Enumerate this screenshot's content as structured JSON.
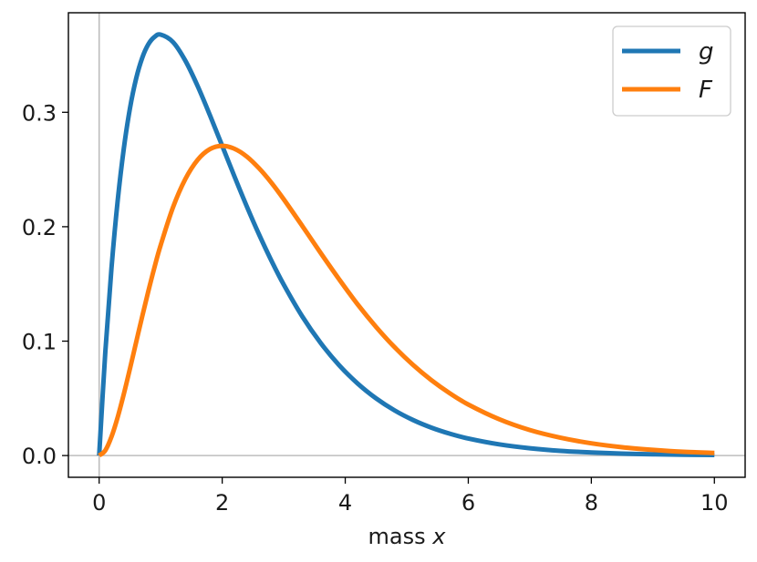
{
  "chart_data": {
    "type": "line",
    "xlabel": {
      "prefix": "mass ",
      "var": "x"
    },
    "xlim": [
      -0.5,
      10.5
    ],
    "ylim": [
      -0.019,
      0.387
    ],
    "x_ticks": [
      0,
      2,
      4,
      6,
      8,
      10
    ],
    "x_tick_labels": [
      "0",
      "2",
      "4",
      "6",
      "8",
      "10"
    ],
    "y_ticks": [
      0.0,
      0.1,
      0.2,
      0.3
    ],
    "y_tick_labels": [
      "0.0",
      "0.1",
      "0.2",
      "0.3"
    ],
    "grid": false,
    "reference_lines": {
      "x": 0,
      "y": 0,
      "color": "#bdbdbd"
    },
    "legend_position": "top-right",
    "x": [
      0,
      0.1,
      0.2,
      0.3,
      0.4,
      0.5,
      0.6,
      0.7,
      0.8,
      0.9,
      1.0,
      1.2,
      1.4,
      1.6,
      1.8,
      2.0,
      2.2,
      2.4,
      2.6,
      2.8,
      3.0,
      3.3,
      3.6,
      3.9,
      4.2,
      4.5,
      4.8,
      5.1,
      5.4,
      5.7,
      6.0,
      6.5,
      7.0,
      7.5,
      8.0,
      8.5,
      9.0,
      9.5,
      10.0
    ],
    "series": [
      {
        "name": "g",
        "color": "#1f77b4",
        "values": [
          0,
          0.0905,
          0.1637,
          0.2222,
          0.2681,
          0.3033,
          0.3293,
          0.3476,
          0.3595,
          0.3659,
          0.3679,
          0.3614,
          0.3452,
          0.323,
          0.2975,
          0.2707,
          0.2438,
          0.2177,
          0.1931,
          0.1703,
          0.1494,
          0.1217,
          0.0984,
          0.079,
          0.063,
          0.05,
          0.0395,
          0.0311,
          0.0244,
          0.0191,
          0.0149,
          0.0098,
          0.0064,
          0.0041,
          0.0027,
          0.0017,
          0.0011,
          0.0007,
          0.0005
        ]
      },
      {
        "name": "F",
        "color": "#ff7f0e",
        "values": [
          0,
          0.0045,
          0.0164,
          0.0333,
          0.0536,
          0.0758,
          0.0988,
          0.1217,
          0.1438,
          0.1647,
          0.1839,
          0.2169,
          0.2416,
          0.2584,
          0.2678,
          0.2707,
          0.2681,
          0.2613,
          0.251,
          0.2384,
          0.224,
          0.2008,
          0.1771,
          0.1541,
          0.1322,
          0.1125,
          0.0948,
          0.0793,
          0.0659,
          0.0544,
          0.0446,
          0.0318,
          0.0223,
          0.0156,
          0.0107,
          0.0073,
          0.005,
          0.0033,
          0.0023
        ]
      }
    ]
  }
}
